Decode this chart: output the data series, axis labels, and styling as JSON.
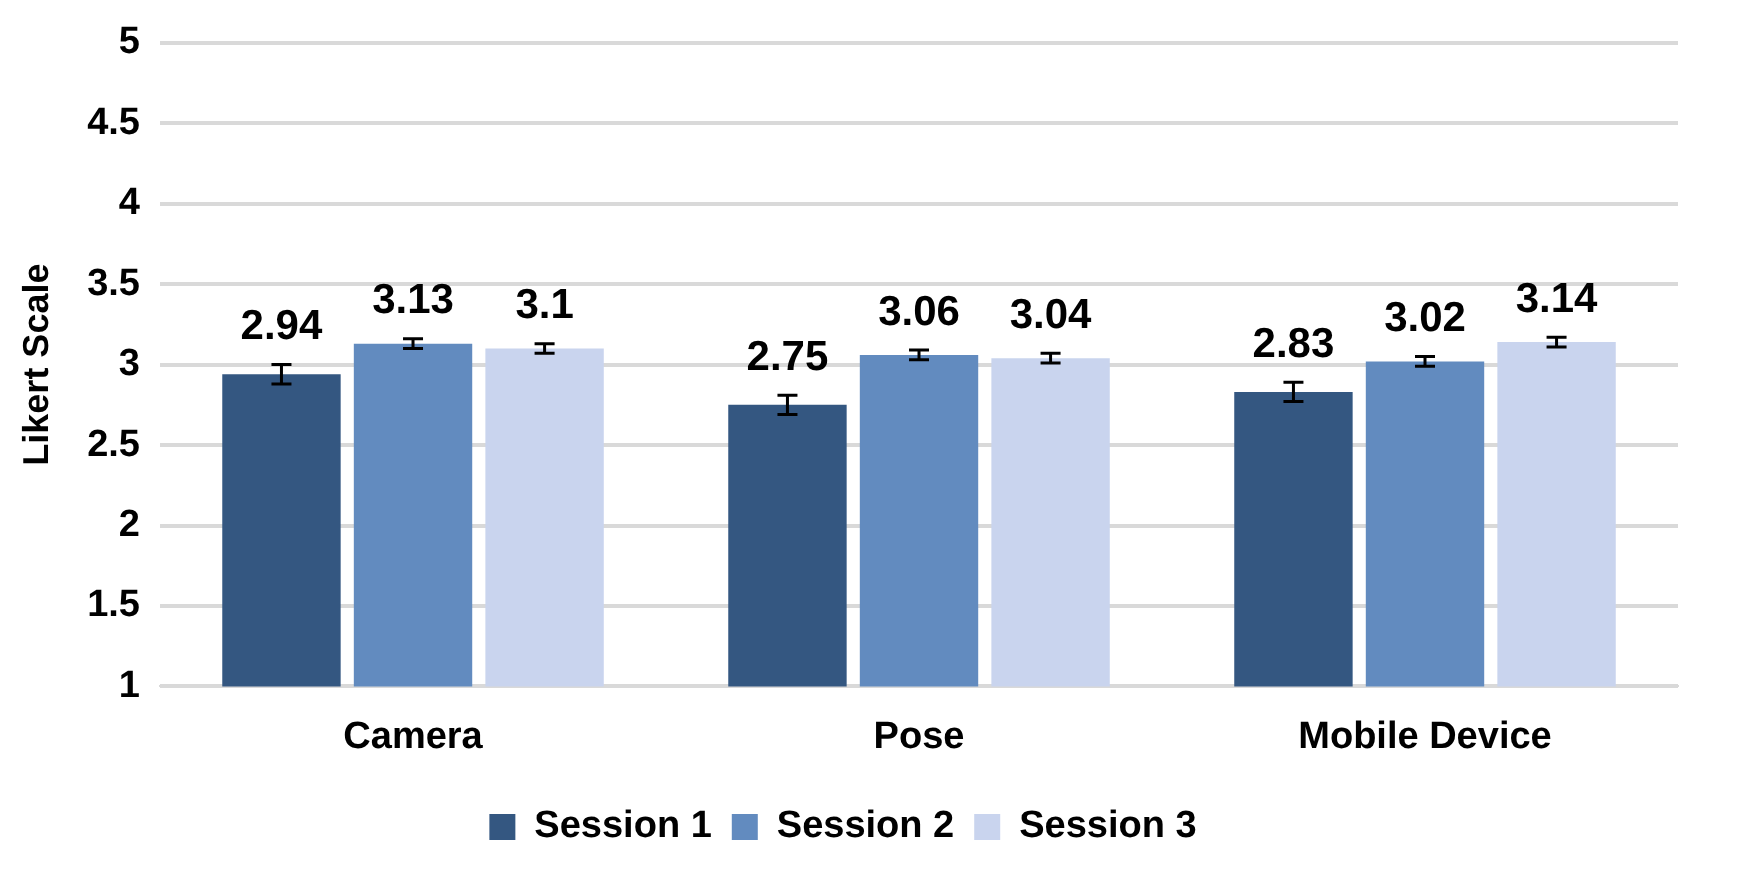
{
  "chart_data": {
    "type": "bar",
    "ylabel": "Likert Scale",
    "categories": [
      "Camera",
      "Pose",
      "Mobile Device"
    ],
    "series": [
      {
        "name": "Session 1",
        "color": "#345781",
        "values": [
          2.94,
          2.75,
          2.83
        ],
        "errors": [
          0.06,
          0.06,
          0.06
        ]
      },
      {
        "name": "Session 2",
        "color": "#628bbf",
        "values": [
          3.13,
          3.06,
          3.02
        ],
        "errors": [
          0.03,
          0.03,
          0.03
        ]
      },
      {
        "name": "Session 3",
        "color": "#c9d4ee",
        "values": [
          3.1,
          3.04,
          3.14
        ],
        "errors": [
          0.03,
          0.03,
          0.03
        ]
      }
    ],
    "ylim": [
      1,
      5
    ],
    "yticks": [
      1,
      1.5,
      2,
      2.5,
      3,
      3.5,
      4,
      4.5,
      5
    ],
    "grid": "y",
    "legend": "bottom",
    "data_labels": true
  }
}
